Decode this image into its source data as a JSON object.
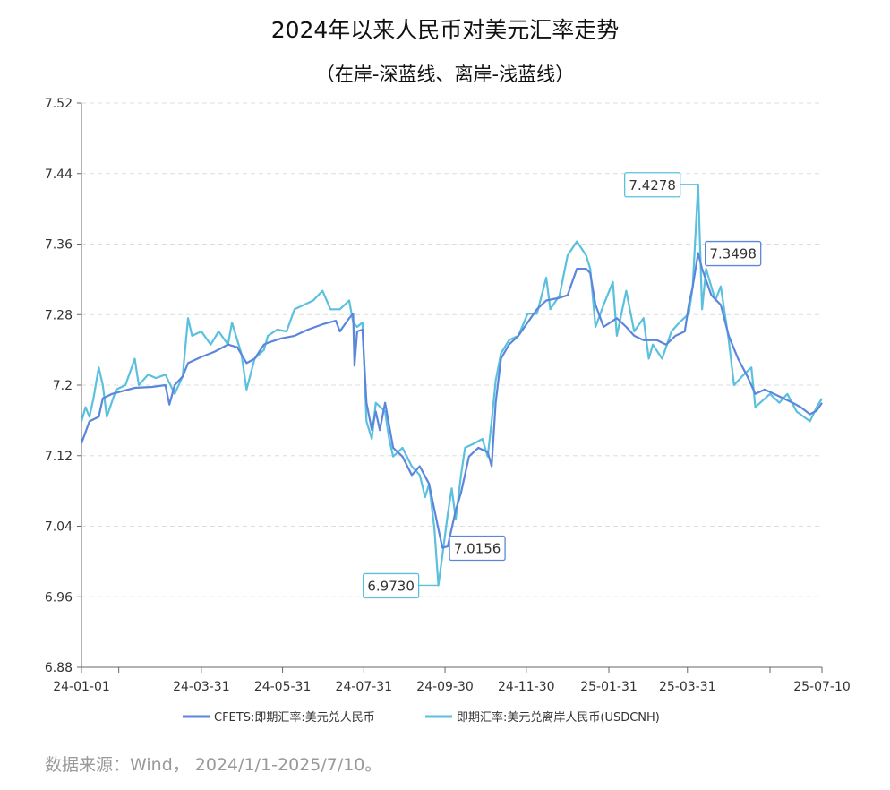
{
  "chart_data": {
    "type": "line",
    "title": "2024年以来人民币对美元汇率走势",
    "subtitle": "（在岸-深蓝线、离岸-浅蓝线）",
    "source": "数据来源：Wind， 2024/1/1-2025/7/10。",
    "ylim": [
      6.88,
      7.52
    ],
    "yticks": [
      "6.88",
      "6.96",
      "7.04",
      "7.12",
      "7.2",
      "7.28",
      "7.36",
      "7.44",
      "7.52"
    ],
    "xlim": [
      "2024-01-01",
      "2025-07-10"
    ],
    "xticks": [
      {
        "date": "2024-01-01",
        "label": "24-01-01"
      },
      {
        "date": "2024-01-29",
        "label": ""
      },
      {
        "date": "2024-03-31",
        "label": "24-03-31"
      },
      {
        "date": "2024-05-31",
        "label": "24-05-31"
      },
      {
        "date": "2024-07-31",
        "label": "24-07-31"
      },
      {
        "date": "2024-09-30",
        "label": "24-09-30"
      },
      {
        "date": "2024-11-30",
        "label": "24-11-30"
      },
      {
        "date": "2025-01-31",
        "label": "25-01-31"
      },
      {
        "date": "2025-03-31",
        "label": "25-03-31"
      },
      {
        "date": "2025-06-01",
        "label": ""
      },
      {
        "date": "2025-07-10",
        "label": "25-07-10"
      }
    ],
    "grid": "horizontal-dashed",
    "legend_position": "bottom",
    "series": [
      {
        "name": "CFETS:即期汇率:美元兑人民币",
        "color": "#5b86dc",
        "points": [
          [
            "2024-01-01",
            7.134
          ],
          [
            "2024-01-07",
            7.159
          ],
          [
            "2024-01-14",
            7.164
          ],
          [
            "2024-01-17",
            7.185
          ],
          [
            "2024-01-24",
            7.19
          ],
          [
            "2024-01-31",
            7.193
          ],
          [
            "2024-02-10",
            7.197
          ],
          [
            "2024-02-23",
            7.198
          ],
          [
            "2024-03-04",
            7.2
          ],
          [
            "2024-03-07",
            7.178
          ],
          [
            "2024-03-11",
            7.2
          ],
          [
            "2024-03-17",
            7.21
          ],
          [
            "2024-03-21",
            7.225
          ],
          [
            "2024-03-31",
            7.232
          ],
          [
            "2024-04-10",
            7.238
          ],
          [
            "2024-04-20",
            7.246
          ],
          [
            "2024-04-27",
            7.243
          ],
          [
            "2024-05-04",
            7.225
          ],
          [
            "2024-05-10",
            7.23
          ],
          [
            "2024-05-17",
            7.246
          ],
          [
            "2024-05-20",
            7.248
          ],
          [
            "2024-05-30",
            7.253
          ],
          [
            "2024-06-09",
            7.256
          ],
          [
            "2024-06-19",
            7.263
          ],
          [
            "2024-06-30",
            7.269
          ],
          [
            "2024-07-10",
            7.273
          ],
          [
            "2024-07-13",
            7.261
          ],
          [
            "2024-07-20",
            7.276
          ],
          [
            "2024-07-23",
            7.281
          ],
          [
            "2024-07-24",
            7.222
          ],
          [
            "2024-07-26",
            7.261
          ],
          [
            "2024-07-30",
            7.263
          ],
          [
            "2024-08-02",
            7.18
          ],
          [
            "2024-08-06",
            7.149
          ],
          [
            "2024-08-09",
            7.17
          ],
          [
            "2024-08-12",
            7.149
          ],
          [
            "2024-08-16",
            7.18
          ],
          [
            "2024-08-22",
            7.129
          ],
          [
            "2024-08-29",
            7.119
          ],
          [
            "2024-09-05",
            7.098
          ],
          [
            "2024-09-11",
            7.108
          ],
          [
            "2024-09-18",
            7.088
          ],
          [
            "2024-09-25",
            7.037
          ],
          [
            "2024-09-28",
            7.0156
          ],
          [
            "2024-10-02",
            7.017
          ],
          [
            "2024-10-08",
            7.058
          ],
          [
            "2024-10-12",
            7.078
          ],
          [
            "2024-10-18",
            7.119
          ],
          [
            "2024-10-25",
            7.129
          ],
          [
            "2024-11-01",
            7.124
          ],
          [
            "2024-11-04",
            7.108
          ],
          [
            "2024-11-07",
            7.18
          ],
          [
            "2024-11-11",
            7.23
          ],
          [
            "2024-11-17",
            7.246
          ],
          [
            "2024-11-24",
            7.256
          ],
          [
            "2024-12-01",
            7.271
          ],
          [
            "2024-12-08",
            7.286
          ],
          [
            "2024-12-15",
            7.296
          ],
          [
            "2024-12-25",
            7.299
          ],
          [
            "2024-12-31",
            7.302
          ],
          [
            "2025-01-07",
            7.332
          ],
          [
            "2025-01-14",
            7.332
          ],
          [
            "2025-01-17",
            7.327
          ],
          [
            "2025-01-21",
            7.291
          ],
          [
            "2025-01-27",
            7.266
          ],
          [
            "2025-02-06",
            7.276
          ],
          [
            "2025-02-13",
            7.266
          ],
          [
            "2025-02-19",
            7.256
          ],
          [
            "2025-02-26",
            7.251
          ],
          [
            "2025-03-08",
            7.251
          ],
          [
            "2025-03-15",
            7.246
          ],
          [
            "2025-03-22",
            7.256
          ],
          [
            "2025-03-29",
            7.261
          ],
          [
            "2025-04-01",
            7.291
          ],
          [
            "2025-04-04",
            7.312
          ],
          [
            "2025-04-08",
            7.3498
          ],
          [
            "2025-04-11",
            7.332
          ],
          [
            "2025-04-18",
            7.302
          ],
          [
            "2025-04-25",
            7.291
          ],
          [
            "2025-05-01",
            7.256
          ],
          [
            "2025-05-08",
            7.23
          ],
          [
            "2025-05-15",
            7.21
          ],
          [
            "2025-05-21",
            7.19
          ],
          [
            "2025-05-28",
            7.195
          ],
          [
            "2025-06-04",
            7.19
          ],
          [
            "2025-06-11",
            7.185
          ],
          [
            "2025-06-18",
            7.18
          ],
          [
            "2025-06-24",
            7.175
          ],
          [
            "2025-07-01",
            7.167
          ],
          [
            "2025-07-06",
            7.171
          ],
          [
            "2025-07-10",
            7.18
          ]
        ]
      },
      {
        "name": "即期汇率:美元兑离岸人民币(USDCNH)",
        "color": "#5bc0de",
        "points": [
          [
            "2024-01-01",
            7.159
          ],
          [
            "2024-01-04",
            7.175
          ],
          [
            "2024-01-07",
            7.164
          ],
          [
            "2024-01-10",
            7.185
          ],
          [
            "2024-01-14",
            7.22
          ],
          [
            "2024-01-17",
            7.2
          ],
          [
            "2024-01-20",
            7.164
          ],
          [
            "2024-01-27",
            7.195
          ],
          [
            "2024-02-03",
            7.2
          ],
          [
            "2024-02-10",
            7.23
          ],
          [
            "2024-02-13",
            7.2
          ],
          [
            "2024-02-20",
            7.212
          ],
          [
            "2024-02-26",
            7.208
          ],
          [
            "2024-03-04",
            7.212
          ],
          [
            "2024-03-11",
            7.19
          ],
          [
            "2024-03-17",
            7.21
          ],
          [
            "2024-03-21",
            7.276
          ],
          [
            "2024-03-24",
            7.256
          ],
          [
            "2024-03-31",
            7.261
          ],
          [
            "2024-04-07",
            7.246
          ],
          [
            "2024-04-13",
            7.261
          ],
          [
            "2024-04-20",
            7.246
          ],
          [
            "2024-04-23",
            7.271
          ],
          [
            "2024-04-30",
            7.236
          ],
          [
            "2024-05-04",
            7.195
          ],
          [
            "2024-05-10",
            7.23
          ],
          [
            "2024-05-17",
            7.24
          ],
          [
            "2024-05-20",
            7.256
          ],
          [
            "2024-05-27",
            7.263
          ],
          [
            "2024-06-03",
            7.261
          ],
          [
            "2024-06-09",
            7.286
          ],
          [
            "2024-06-16",
            7.291
          ],
          [
            "2024-06-23",
            7.296
          ],
          [
            "2024-06-30",
            7.307
          ],
          [
            "2024-07-06",
            7.286
          ],
          [
            "2024-07-13",
            7.286
          ],
          [
            "2024-07-20",
            7.296
          ],
          [
            "2024-07-23",
            7.271
          ],
          [
            "2024-07-26",
            7.266
          ],
          [
            "2024-07-30",
            7.271
          ],
          [
            "2024-08-02",
            7.159
          ],
          [
            "2024-08-06",
            7.139
          ],
          [
            "2024-08-09",
            7.18
          ],
          [
            "2024-08-16",
            7.17
          ],
          [
            "2024-08-19",
            7.139
          ],
          [
            "2024-08-22",
            7.119
          ],
          [
            "2024-08-29",
            7.129
          ],
          [
            "2024-09-05",
            7.108
          ],
          [
            "2024-09-11",
            7.098
          ],
          [
            "2024-09-15",
            7.073
          ],
          [
            "2024-09-18",
            7.088
          ],
          [
            "2024-09-22",
            7.037
          ],
          [
            "2024-09-25",
            6.973
          ],
          [
            "2024-09-28",
            7.007
          ],
          [
            "2024-10-02",
            7.053
          ],
          [
            "2024-10-05",
            7.083
          ],
          [
            "2024-10-08",
            7.048
          ],
          [
            "2024-10-12",
            7.098
          ],
          [
            "2024-10-15",
            7.129
          ],
          [
            "2024-10-22",
            7.134
          ],
          [
            "2024-10-28",
            7.139
          ],
          [
            "2024-11-01",
            7.119
          ],
          [
            "2024-11-04",
            7.159
          ],
          [
            "2024-11-07",
            7.205
          ],
          [
            "2024-11-11",
            7.236
          ],
          [
            "2024-11-17",
            7.251
          ],
          [
            "2024-11-24",
            7.256
          ],
          [
            "2024-12-01",
            7.281
          ],
          [
            "2024-12-08",
            7.281
          ],
          [
            "2024-12-15",
            7.322
          ],
          [
            "2024-12-18",
            7.286
          ],
          [
            "2024-12-25",
            7.302
          ],
          [
            "2024-12-31",
            7.347
          ],
          [
            "2025-01-07",
            7.363
          ],
          [
            "2025-01-14",
            7.347
          ],
          [
            "2025-01-17",
            7.332
          ],
          [
            "2025-01-21",
            7.266
          ],
          [
            "2025-01-27",
            7.291
          ],
          [
            "2025-02-03",
            7.317
          ],
          [
            "2025-02-06",
            7.256
          ],
          [
            "2025-02-13",
            7.307
          ],
          [
            "2025-02-19",
            7.261
          ],
          [
            "2025-02-26",
            7.276
          ],
          [
            "2025-03-02",
            7.23
          ],
          [
            "2025-03-05",
            7.246
          ],
          [
            "2025-03-12",
            7.23
          ],
          [
            "2025-03-19",
            7.261
          ],
          [
            "2025-03-25",
            7.271
          ],
          [
            "2025-04-01",
            7.281
          ],
          [
            "2025-04-04",
            7.312
          ],
          [
            "2025-04-08",
            7.4278
          ],
          [
            "2025-04-11",
            7.286
          ],
          [
            "2025-04-14",
            7.332
          ],
          [
            "2025-04-21",
            7.296
          ],
          [
            "2025-04-25",
            7.312
          ],
          [
            "2025-05-01",
            7.251
          ],
          [
            "2025-05-05",
            7.2
          ],
          [
            "2025-05-11",
            7.21
          ],
          [
            "2025-05-18",
            7.22
          ],
          [
            "2025-05-21",
            7.175
          ],
          [
            "2025-06-01",
            7.19
          ],
          [
            "2025-06-08",
            7.18
          ],
          [
            "2025-06-14",
            7.19
          ],
          [
            "2025-06-21",
            7.17
          ],
          [
            "2025-07-01",
            7.159
          ],
          [
            "2025-07-06",
            7.175
          ],
          [
            "2025-07-10",
            7.185
          ]
        ]
      }
    ],
    "annotations": [
      {
        "series": 1,
        "date": "2025-04-08",
        "value": 7.4278,
        "text": "7.4278"
      },
      {
        "series": 0,
        "date": "2025-04-08",
        "value": 7.3498,
        "text": "7.3498"
      },
      {
        "series": 0,
        "date": "2024-09-28",
        "value": 7.0156,
        "text": "7.0156"
      },
      {
        "series": 1,
        "date": "2024-09-25",
        "value": 6.973,
        "text": "6.9730"
      }
    ]
  }
}
